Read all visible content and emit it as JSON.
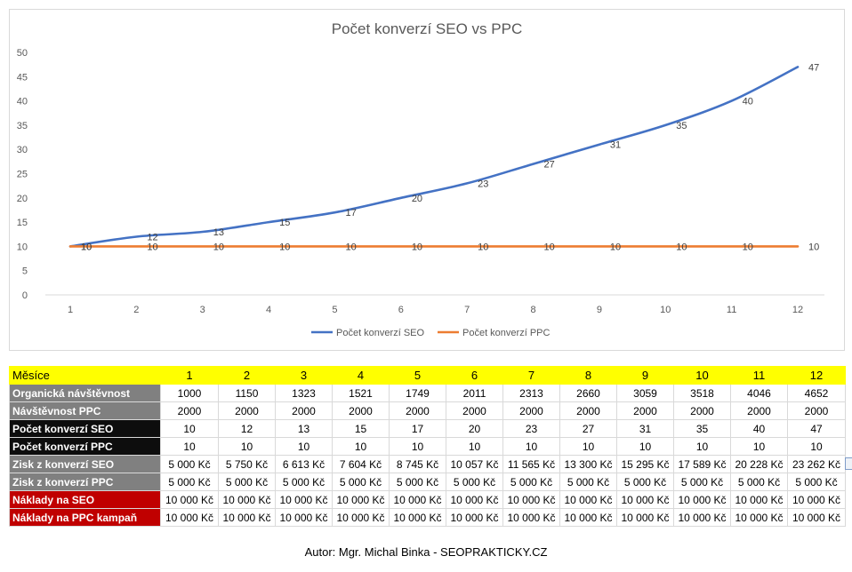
{
  "chart_data": {
    "type": "line",
    "title": "Počet konverzí SEO vs PPC",
    "x": [
      1,
      2,
      3,
      4,
      5,
      6,
      7,
      8,
      9,
      10,
      11,
      12
    ],
    "series": [
      {
        "name": "Počet konverzí SEO",
        "color": "#4472c4",
        "values": [
          10,
          12,
          13,
          15,
          17,
          20,
          23,
          27,
          31,
          35,
          40,
          47
        ]
      },
      {
        "name": "Počet konverzí PPC",
        "color": "#ed7d31",
        "values": [
          10,
          10,
          10,
          10,
          10,
          10,
          10,
          10,
          10,
          10,
          10,
          10
        ]
      }
    ],
    "ylim": [
      0,
      50
    ],
    "yticks": [
      0,
      5,
      10,
      15,
      20,
      25,
      30,
      35,
      40,
      45,
      50
    ],
    "grid": false,
    "legend_position": "bottom"
  },
  "table": {
    "header": {
      "label": "Měsíce",
      "months": [
        "1",
        "2",
        "3",
        "4",
        "5",
        "6",
        "7",
        "8",
        "9",
        "10",
        "11",
        "12"
      ]
    },
    "rows": [
      {
        "label": "Organická návštěvnost",
        "style": "gray",
        "values": [
          "1000",
          "1150",
          "1323",
          "1521",
          "1749",
          "2011",
          "2313",
          "2660",
          "3059",
          "3518",
          "4046",
          "4652"
        ]
      },
      {
        "label": "Návštěvnost PPC",
        "style": "gray",
        "values": [
          "2000",
          "2000",
          "2000",
          "2000",
          "2000",
          "2000",
          "2000",
          "2000",
          "2000",
          "2000",
          "2000",
          "2000"
        ]
      },
      {
        "label": "Počet konverzí SEO",
        "style": "black",
        "values": [
          "10",
          "12",
          "13",
          "15",
          "17",
          "20",
          "23",
          "27",
          "31",
          "35",
          "40",
          "47"
        ]
      },
      {
        "label": "Počet konverzí PPC",
        "style": "black",
        "values": [
          "10",
          "10",
          "10",
          "10",
          "10",
          "10",
          "10",
          "10",
          "10",
          "10",
          "10",
          "10"
        ]
      },
      {
        "label": "Zisk z konverzí SEO",
        "style": "gray",
        "values": [
          "5 000 Kč",
          "5 750 Kč",
          "6 613 Kč",
          "7 604 Kč",
          "8 745 Kč",
          "10 057 Kč",
          "11 565 Kč",
          "13 300 Kč",
          "15 295 Kč",
          "17 589 Kč",
          "20 228 Kč",
          "23 262 Kč"
        ]
      },
      {
        "label": "Zisk z konverzí PPC",
        "style": "gray",
        "values": [
          "5 000 Kč",
          "5 000 Kč",
          "5 000 Kč",
          "5 000 Kč",
          "5 000 Kč",
          "5 000 Kč",
          "5 000 Kč",
          "5 000 Kč",
          "5 000 Kč",
          "5 000 Kč",
          "5 000 Kč",
          "5 000 Kč"
        ]
      },
      {
        "label": "Náklady na SEO",
        "style": "red",
        "values": [
          "10 000 Kč",
          "10 000 Kč",
          "10 000 Kč",
          "10 000 Kč",
          "10 000 Kč",
          "10 000 Kč",
          "10 000 Kč",
          "10 000 Kč",
          "10 000 Kč",
          "10 000 Kč",
          "10 000 Kč",
          "10 000 Kč"
        ]
      },
      {
        "label": "Náklady na PPC kampaň",
        "style": "red",
        "values": [
          "10 000 Kč",
          "10 000 Kč",
          "10 000 Kč",
          "10 000 Kč",
          "10 000 Kč",
          "10 000 Kč",
          "10 000 Kč",
          "10 000 Kč",
          "10 000 Kč",
          "10 000 Kč",
          "10 000 Kč",
          "10 000 Kč"
        ]
      }
    ]
  },
  "footer": {
    "author": "Autor: Mgr. Michal Binka - SEOPRAKTICKY.CZ"
  },
  "icons": {
    "side_tab": "paste-options-icon"
  }
}
